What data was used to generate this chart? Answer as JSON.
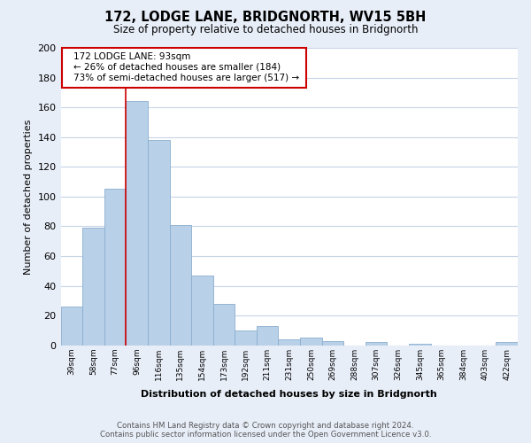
{
  "title": "172, LODGE LANE, BRIDGNORTH, WV15 5BH",
  "subtitle": "Size of property relative to detached houses in Bridgnorth",
  "xlabel": "Distribution of detached houses by size in Bridgnorth",
  "ylabel": "Number of detached properties",
  "categories": [
    "39sqm",
    "58sqm",
    "77sqm",
    "96sqm",
    "116sqm",
    "135sqm",
    "154sqm",
    "173sqm",
    "192sqm",
    "211sqm",
    "231sqm",
    "250sqm",
    "269sqm",
    "288sqm",
    "307sqm",
    "326sqm",
    "345sqm",
    "365sqm",
    "384sqm",
    "403sqm",
    "422sqm"
  ],
  "values": [
    26,
    79,
    105,
    164,
    138,
    81,
    47,
    28,
    10,
    13,
    4,
    5,
    3,
    0,
    2,
    0,
    1,
    0,
    0,
    0,
    2
  ],
  "bar_color": "#b8d0e8",
  "bar_edge_color": "#8aaece",
  "ylim": [
    0,
    200
  ],
  "yticks": [
    0,
    20,
    40,
    60,
    80,
    100,
    120,
    140,
    160,
    180,
    200
  ],
  "property_line_color": "#cc0000",
  "annotation_title": "172 LODGE LANE: 93sqm",
  "annotation_line1": "← 26% of detached houses are smaller (184)",
  "annotation_line2": "73% of semi-detached houses are larger (517) →",
  "annotation_box_facecolor": "#ffffff",
  "annotation_box_edgecolor": "#cc0000",
  "footer_line1": "Contains HM Land Registry data © Crown copyright and database right 2024.",
  "footer_line2": "Contains public sector information licensed under the Open Government Licence v3.0.",
  "background_color": "#e8eef8",
  "plot_background_color": "#ffffff",
  "grid_color": "#c8d4e8"
}
